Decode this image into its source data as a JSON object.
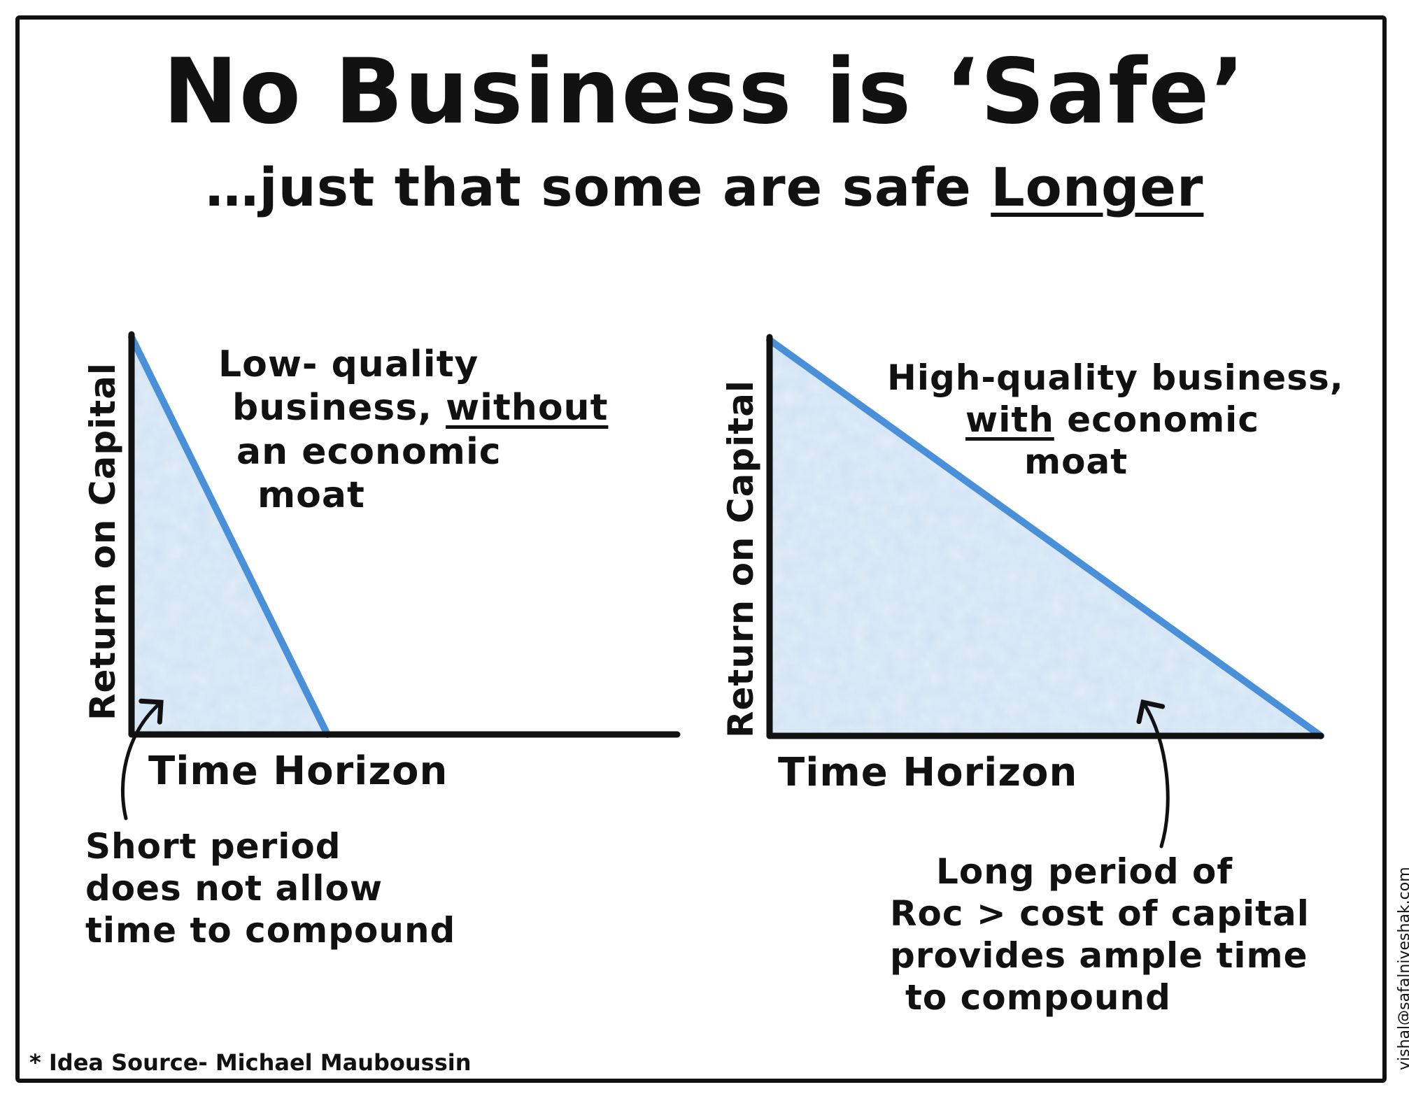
{
  "title": "No Business is ‘Safe’",
  "subtitle": {
    "prefix": "…just that some are safe ",
    "emphasis": "Longer"
  },
  "left_chart": {
    "y_label": "Return on Capital",
    "x_label": "Time Horizon",
    "annotation": {
      "line1": "Low- quality",
      "line2_prefix": "business, ",
      "line2_emphasis": "without",
      "line3": "an economic",
      "line4": "moat"
    },
    "callout": {
      "line1": "Short period",
      "line2": "does not allow",
      "line3": "time to compound"
    },
    "duration": 0.35
  },
  "right_chart": {
    "y_label": "Return on Capital",
    "x_label": "Time Horizon",
    "annotation": {
      "line1": "High-quality business,",
      "line2_emphasis": "with",
      "line2_suffix": " economic",
      "line3": "moat"
    },
    "callout": {
      "line1": "Long period of",
      "line2": "Roc > cost of capital",
      "line3": "provides ample time",
      "line4": "to compound"
    },
    "duration": 1.0
  },
  "source": "* Idea Source- Michael Mauboussin",
  "credit": "vishal@safalniveshak.com",
  "colors": {
    "line": "#4a90d9",
    "fill": "#cfe2f5",
    "ink": "#111111"
  }
}
